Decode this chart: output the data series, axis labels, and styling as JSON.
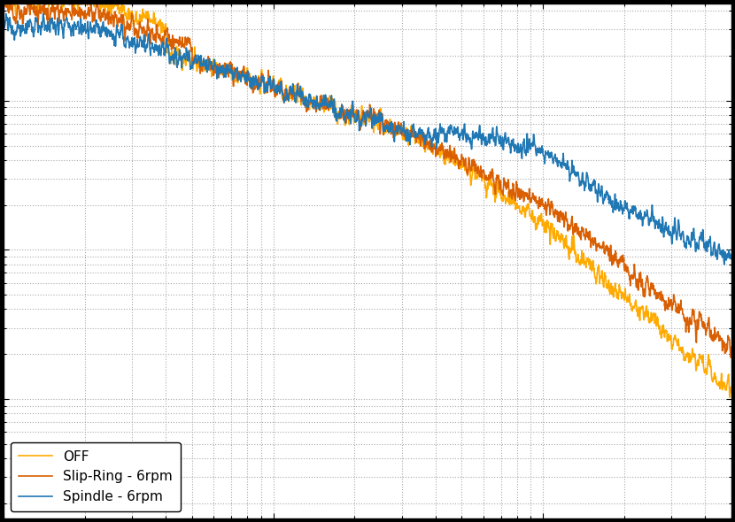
{
  "line1_label": "Spindle - 6rpm",
  "line2_label": "Slip-Ring - 6rpm",
  "line3_label": "OFF",
  "line1_color": "#1f77b4",
  "line2_color": "#d95f02",
  "line3_color": "#ffaa00",
  "background_color": "#ffffff",
  "grid_color": "#aaaaaa",
  "legend_loc": "lower left",
  "seed": 12345,
  "n_points": 2500,
  "linewidth": 1.2,
  "figwidth": 8.3,
  "figheight": 5.9,
  "dpi": 100,
  "xlim_min": 0,
  "xlim_max": 1.0,
  "ylim_min": 0.0,
  "ylim_max": 1.0
}
